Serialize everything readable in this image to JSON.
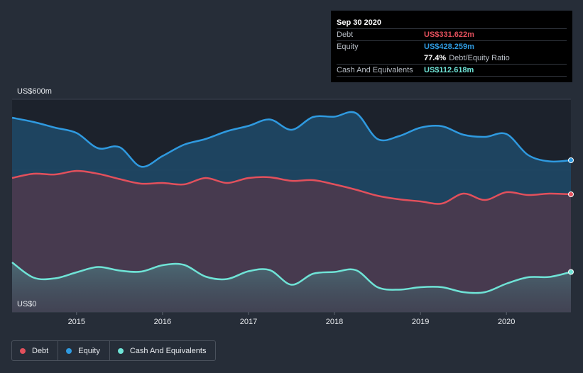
{
  "tooltip": {
    "date": "Sep 30 2020",
    "debt_label": "Debt",
    "debt_value": "US$331.622m",
    "equity_label": "Equity",
    "equity_value": "US$428.259m",
    "ratio_value": "77.4%",
    "ratio_label": "Debt/Equity Ratio",
    "cash_label": "Cash And Equivalents",
    "cash_value": "US$112.618m"
  },
  "legend": {
    "debt": "Debt",
    "equity": "Equity",
    "cash": "Cash And Equivalents"
  },
  "colors": {
    "debt": "#e2505c",
    "equity": "#2f9ae0",
    "cash": "#6fe3d6",
    "background": "#262d38"
  },
  "chart_data": {
    "type": "area",
    "title": "",
    "xlabel": "",
    "ylabel": "",
    "ylim": [
      0,
      600
    ],
    "xlim": [
      2014.25,
      2020.75
    ],
    "y_tick_labels": [
      {
        "value": 600,
        "label": "US$600m"
      },
      {
        "value": 0,
        "label": "US$0"
      }
    ],
    "x_ticks": [
      {
        "value": 2015,
        "label": "2015"
      },
      {
        "value": 2016,
        "label": "2016"
      },
      {
        "value": 2017,
        "label": "2017"
      },
      {
        "value": 2018,
        "label": "2018"
      },
      {
        "value": 2019,
        "label": "2019"
      },
      {
        "value": 2020,
        "label": "2020"
      }
    ],
    "x": [
      2014.25,
      2014.5,
      2014.75,
      2015.0,
      2015.25,
      2015.5,
      2015.75,
      2016.0,
      2016.25,
      2016.5,
      2016.75,
      2017.0,
      2017.25,
      2017.5,
      2017.75,
      2018.0,
      2018.25,
      2018.5,
      2018.75,
      2019.0,
      2019.25,
      2019.5,
      2019.75,
      2020.0,
      2020.25,
      2020.5,
      2020.75
    ],
    "series": [
      {
        "name": "Equity",
        "values": [
          548,
          536,
          520,
          505,
          462,
          465,
          410,
          440,
          472,
          488,
          510,
          525,
          543,
          514,
          550,
          551,
          561,
          488,
          496,
          520,
          524,
          500,
          494,
          502,
          443,
          425,
          428
        ]
      },
      {
        "name": "Debt",
        "values": [
          378,
          390,
          388,
          398,
          390,
          375,
          362,
          364,
          360,
          378,
          364,
          378,
          380,
          370,
          372,
          360,
          345,
          328,
          318,
          312,
          306,
          334,
          316,
          338,
          330,
          334,
          332
        ]
      },
      {
        "name": "Cash And Equivalents",
        "values": [
          140,
          97,
          95,
          112,
          127,
          117,
          114,
          132,
          133,
          100,
          93,
          115,
          118,
          77,
          108,
          113,
          118,
          70,
          63,
          70,
          70,
          56,
          56,
          80,
          98,
          99,
          113
        ]
      }
    ]
  }
}
